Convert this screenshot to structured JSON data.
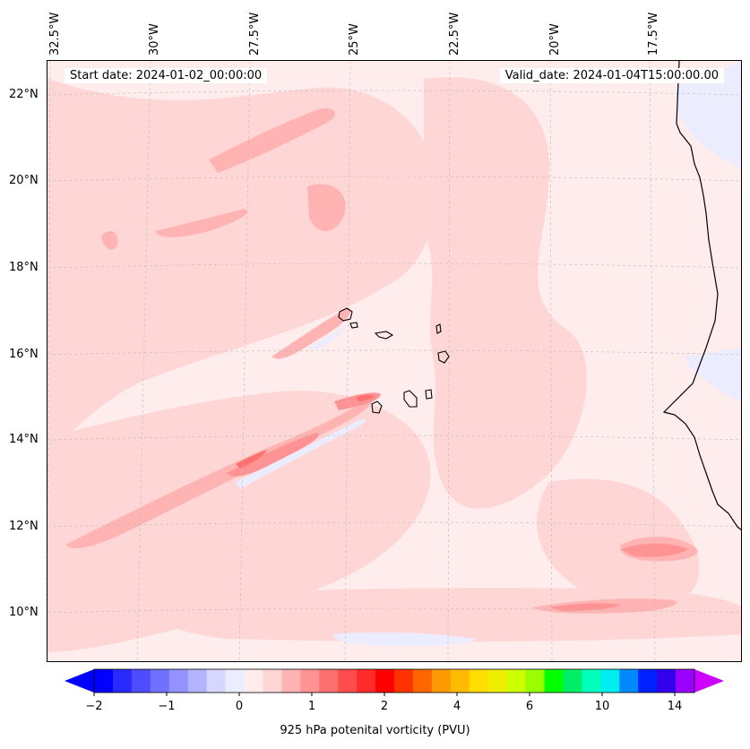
{
  "header": {
    "start_date": "Start date: 2024-01-02_00:00:00",
    "valid_date": "Valid_date: 2024-01-04T15:00:00.00"
  },
  "longitude_labels": [
    "32.5°W",
    "30°W",
    "27.5°W",
    "25°W",
    "22.5°W",
    "20°W",
    "17.5°W"
  ],
  "latitude_labels": [
    "22°N",
    "20°N",
    "18°N",
    "16°N",
    "14°N",
    "12°N",
    "10°N"
  ],
  "colorbar": {
    "label": "925 hPa potenital vorticity (PVU)",
    "ticks": [
      "−2",
      "−1",
      "0",
      "1",
      "2",
      "4",
      "6",
      "10",
      "14"
    ],
    "colors": [
      "#0000ff",
      "#2a2aff",
      "#4d4dff",
      "#7070ff",
      "#9393ff",
      "#b3b3ff",
      "#d6d6ff",
      "#ececff",
      "#ffecec",
      "#ffd6d6",
      "#ffb3b3",
      "#ff9393",
      "#ff7070",
      "#ff4d4d",
      "#ff2a2a",
      "#ff0000",
      "#ff3300",
      "#ff6600",
      "#ff9900",
      "#ffbb00",
      "#ffdd00",
      "#eeee00",
      "#ccff00",
      "#99ff00",
      "#00ff00",
      "#00ee66",
      "#00ffbb",
      "#00eeee",
      "#0088ff",
      "#0022ff",
      "#3300ee",
      "#9900ff"
    ],
    "extend_low": "#0000ff",
    "extend_high": "#cc00ff"
  }
}
